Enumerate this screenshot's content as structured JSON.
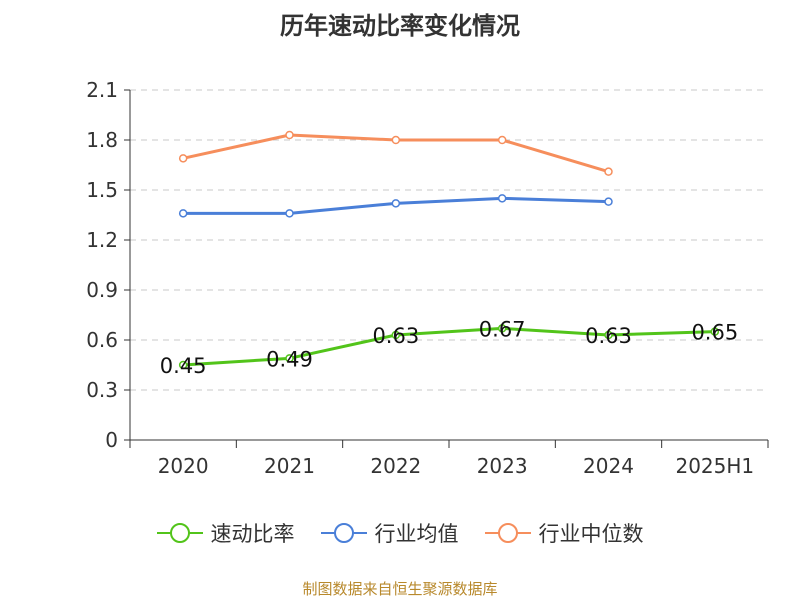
{
  "title": "历年速动比率变化情况",
  "footer": "制图数据来自恒生聚源数据库",
  "chart_data": {
    "type": "line",
    "title": "历年速动比率变化情况",
    "categories": [
      "2020",
      "2021",
      "2022",
      "2023",
      "2024",
      "2025H1"
    ],
    "ylim": [
      0,
      2.1
    ],
    "yticks": [
      "0",
      "0.3",
      "0.6",
      "0.9",
      "1.2",
      "1.5",
      "1.8",
      "2.1"
    ],
    "grid": true,
    "legend_position": "bottom",
    "series": [
      {
        "name": "速动比率",
        "color": "#52c41a",
        "values": [
          0.45,
          0.49,
          0.63,
          0.67,
          0.63,
          0.65
        ],
        "labels": [
          "0.45",
          "0.49",
          "0.63",
          "0.67",
          "0.63",
          "0.65"
        ]
      },
      {
        "name": "行业均值",
        "color": "#4a7fd8",
        "values": [
          1.36,
          1.36,
          1.42,
          1.45,
          1.43,
          null
        ]
      },
      {
        "name": "行业中位数",
        "color": "#f68e5c",
        "values": [
          1.69,
          1.83,
          1.8,
          1.8,
          1.61,
          null
        ]
      }
    ]
  }
}
